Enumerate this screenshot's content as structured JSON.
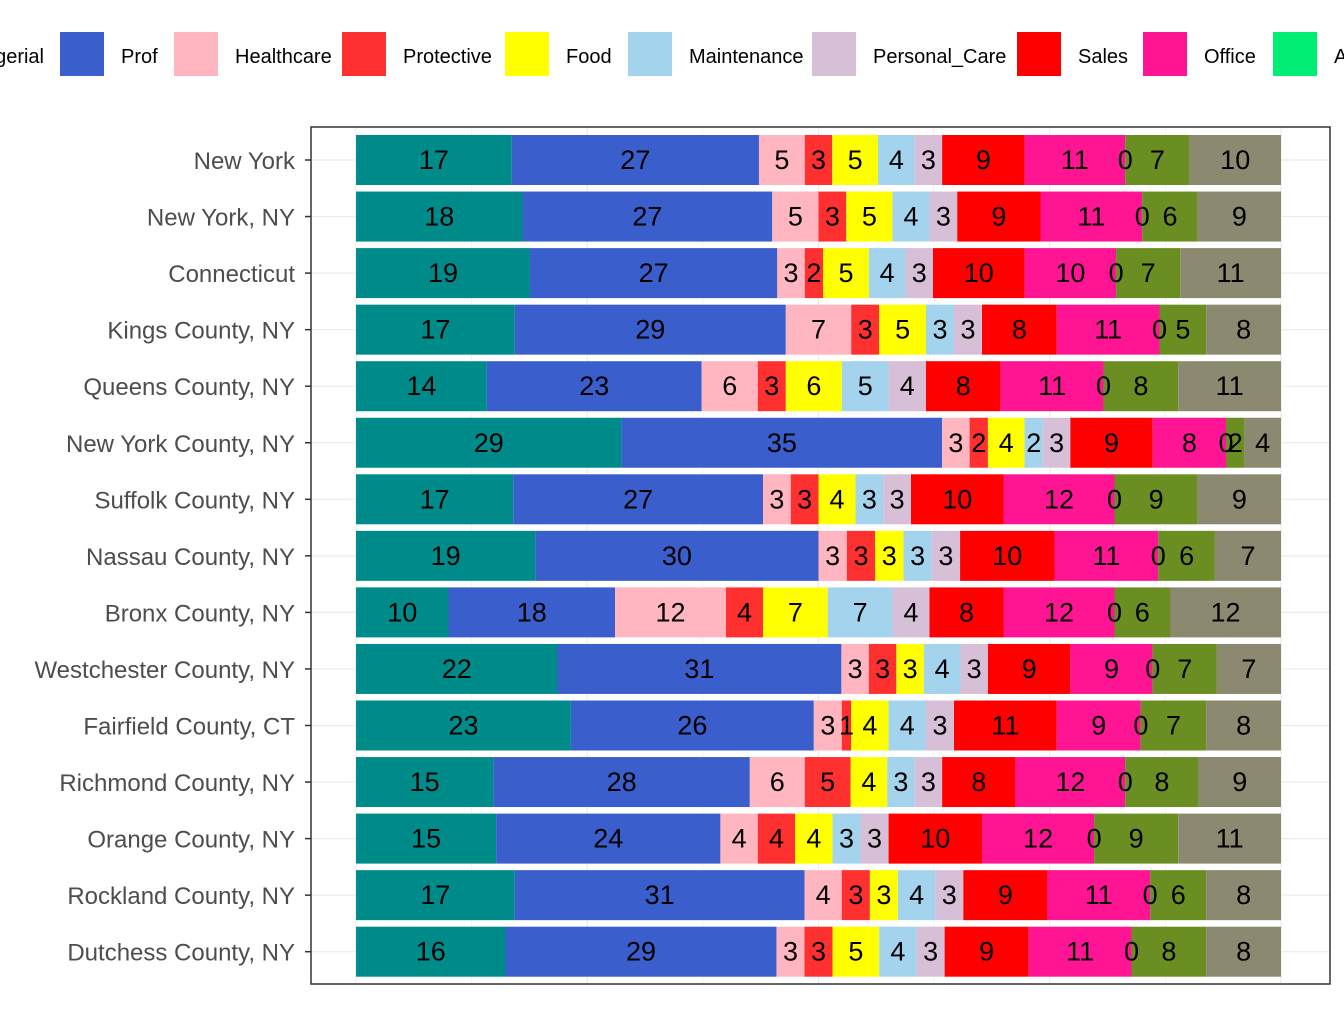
{
  "chart_data": {
    "type": "bar",
    "orientation": "horizontal",
    "stacked": true,
    "legend_position": "top",
    "grid": true,
    "xlim": [
      0,
      100
    ],
    "series": [
      {
        "name": "Managerial",
        "color": "#008B8B"
      },
      {
        "name": "Prof",
        "color": "#3A5FCD"
      },
      {
        "name": "Healthcare",
        "color": "#FFB6C1"
      },
      {
        "name": "Protective",
        "color": "#FF3030"
      },
      {
        "name": "Food",
        "color": "#FFFF00"
      },
      {
        "name": "Maintenance",
        "color": "#A4D3EE"
      },
      {
        "name": "Personal_Care",
        "color": "#D8BFD8"
      },
      {
        "name": "Sales",
        "color": "#FF0000"
      },
      {
        "name": "Office",
        "color": "#FF1493"
      },
      {
        "name": "Agriculture",
        "color": "#00EE76"
      },
      {
        "name": "",
        "color": "#6B8E23"
      },
      {
        "name": "",
        "color": "#8B8970"
      }
    ],
    "categories": [
      "New York",
      "New York, NY",
      "Connecticut",
      "Kings County, NY",
      "Queens County, NY",
      "New York County, NY",
      "Suffolk County, NY",
      "Nassau County, NY",
      "Bronx County, NY",
      "Westchester County, NY",
      "Fairfield County, CT",
      "Richmond County, NY",
      "Orange County, NY",
      "Rockland County, NY",
      "Dutchess County, NY"
    ],
    "values": [
      [
        17,
        27,
        5,
        3,
        5,
        4,
        3,
        9,
        11,
        0,
        7,
        10
      ],
      [
        18,
        27,
        5,
        3,
        5,
        4,
        3,
        9,
        11,
        0,
        6,
        9
      ],
      [
        19,
        27,
        3,
        2,
        5,
        4,
        3,
        10,
        10,
        0,
        7,
        11
      ],
      [
        17,
        29,
        7,
        3,
        5,
        3,
        3,
        8,
        11,
        0,
        5,
        8
      ],
      [
        14,
        23,
        6,
        3,
        6,
        5,
        4,
        8,
        11,
        0,
        8,
        11
      ],
      [
        29,
        35,
        3,
        2,
        4,
        2,
        3,
        9,
        8,
        0,
        2,
        4
      ],
      [
        17,
        27,
        3,
        3,
        4,
        3,
        3,
        10,
        12,
        0,
        9,
        9
      ],
      [
        19,
        30,
        3,
        3,
        3,
        3,
        3,
        10,
        11,
        0,
        6,
        7
      ],
      [
        10,
        18,
        12,
        4,
        7,
        7,
        4,
        8,
        12,
        0,
        6,
        12
      ],
      [
        22,
        31,
        3,
        3,
        3,
        4,
        3,
        9,
        9,
        0,
        7,
        7
      ],
      [
        23,
        26,
        3,
        1,
        4,
        4,
        3,
        11,
        9,
        0,
        7,
        8
      ],
      [
        15,
        28,
        6,
        5,
        4,
        3,
        3,
        8,
        12,
        0,
        8,
        9
      ],
      [
        15,
        24,
        4,
        4,
        4,
        3,
        3,
        10,
        12,
        0,
        9,
        11
      ],
      [
        17,
        31,
        4,
        3,
        3,
        4,
        3,
        9,
        11,
        0,
        6,
        8
      ],
      [
        16,
        29,
        3,
        3,
        5,
        4,
        3,
        9,
        11,
        0,
        8,
        8
      ]
    ],
    "legend_visible_labels": [
      "gerial",
      "Prof",
      "Healthcare",
      "Protective",
      "Food",
      "Maintenance",
      "Personal_Care",
      "Sales",
      "Office",
      "A"
    ]
  }
}
